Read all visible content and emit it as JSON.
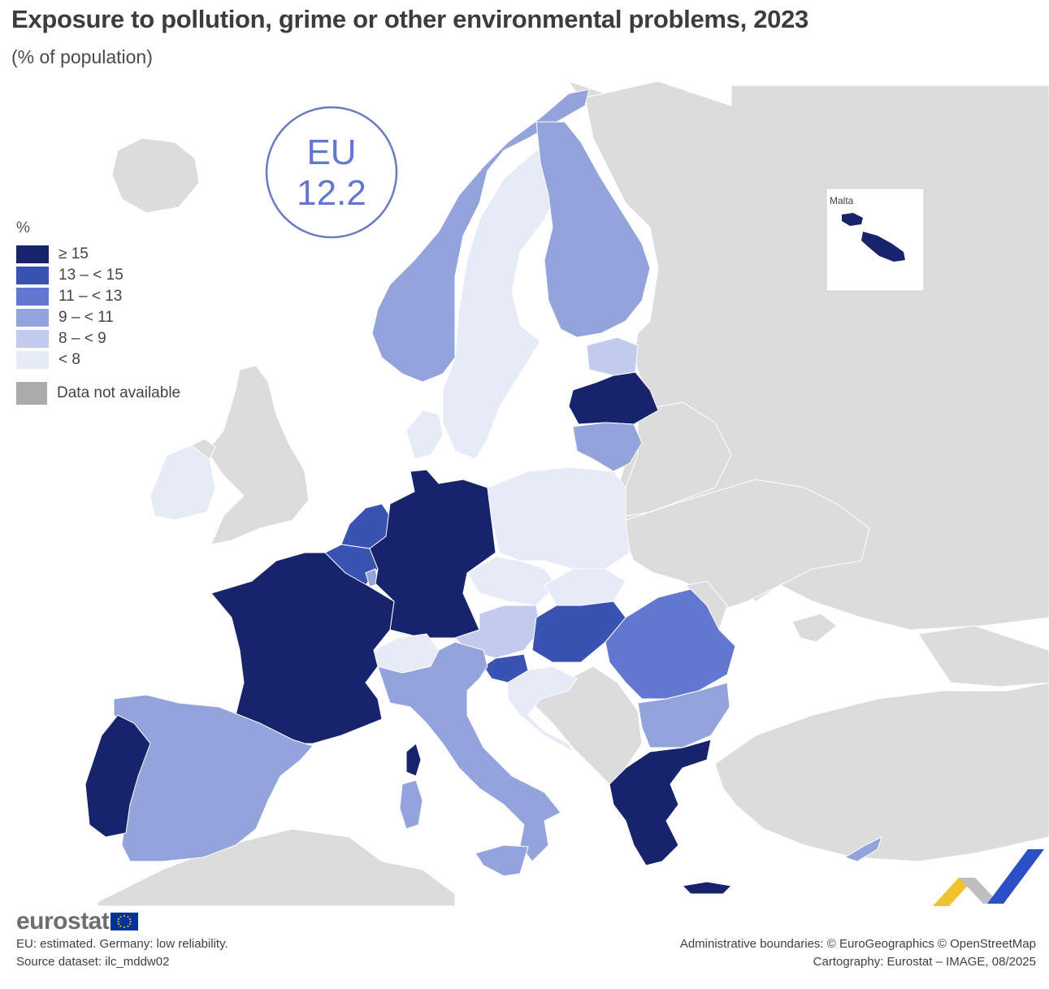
{
  "title": "Exposure to pollution, grime or other environmental problems, 2023",
  "subtitle": "(% of population)",
  "eu_badge": {
    "label": "EU",
    "value": "12.2"
  },
  "inset": {
    "label": "Malta"
  },
  "legend": {
    "unit": "%",
    "items": [
      {
        "label": "≥ 15",
        "color": "#17236b"
      },
      {
        "label": "13 – < 15",
        "color": "#3a52b1"
      },
      {
        "label": "11 – < 13",
        "color": "#6277d0"
      },
      {
        "label": "9 – < 11",
        "color": "#93a3db"
      },
      {
        "label": "8 – < 9",
        "color": "#c2cbed"
      },
      {
        "label": "< 8",
        "color": "#e7eaf7"
      }
    ],
    "na_label": "Data not available",
    "na_color": "#aaaaaa"
  },
  "footer": {
    "logo": "eurostat",
    "note": "EU: estimated. Germany: low reliability.",
    "source": "Source dataset: ilc_mddw02",
    "boundaries": "Administrative boundaries: © EuroGeographics © OpenStreetMap",
    "cartography": "Cartography: Eurostat – IMAGE, 08/2025"
  }
}
